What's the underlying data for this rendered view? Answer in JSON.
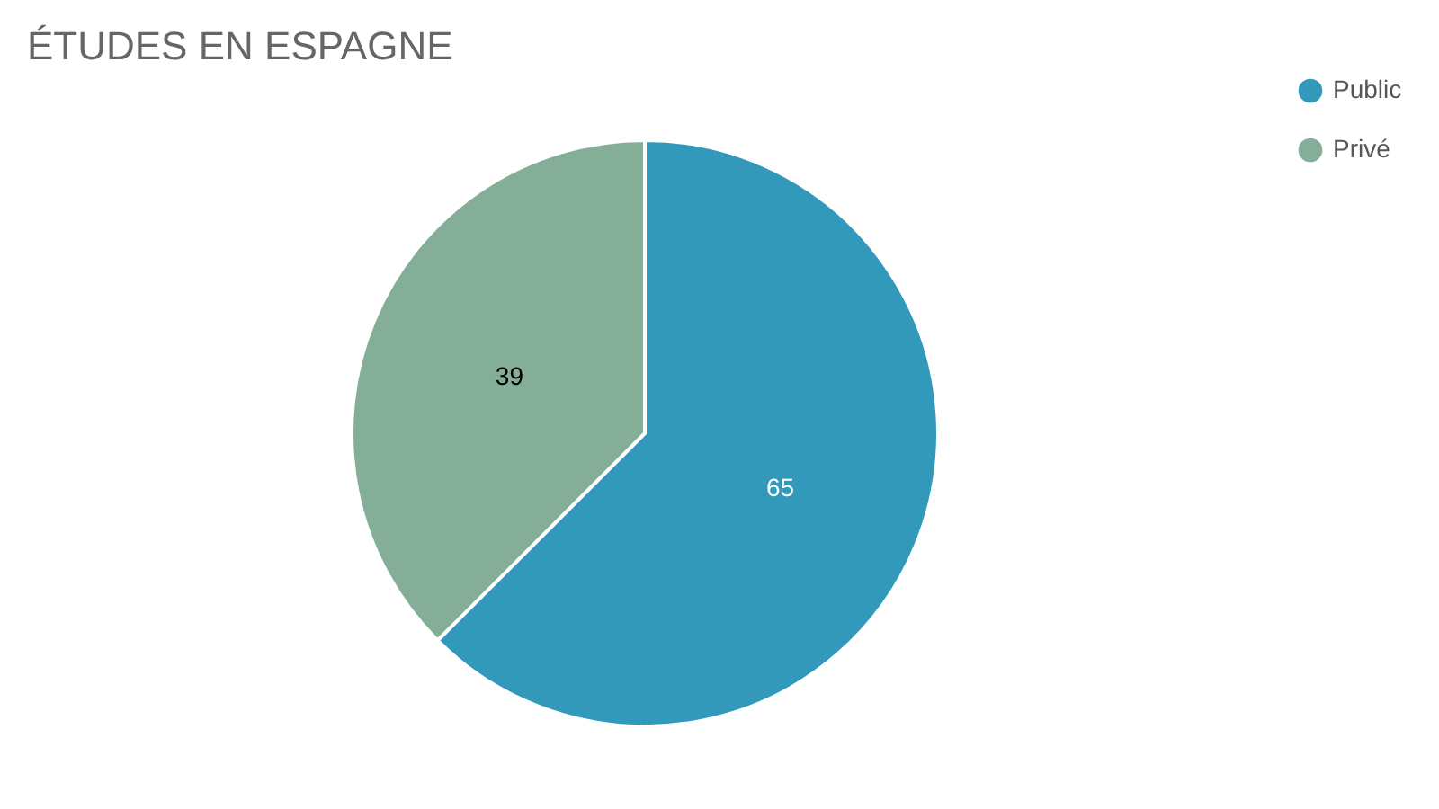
{
  "chart_data": {
    "type": "pie",
    "title": "ÉTUDES EN ESPAGNE",
    "categories": [
      "Public",
      "Privé"
    ],
    "values": [
      65,
      39
    ],
    "colors": [
      "#3399bb",
      "#85ae98"
    ],
    "data_labels": true,
    "legend": "right"
  }
}
